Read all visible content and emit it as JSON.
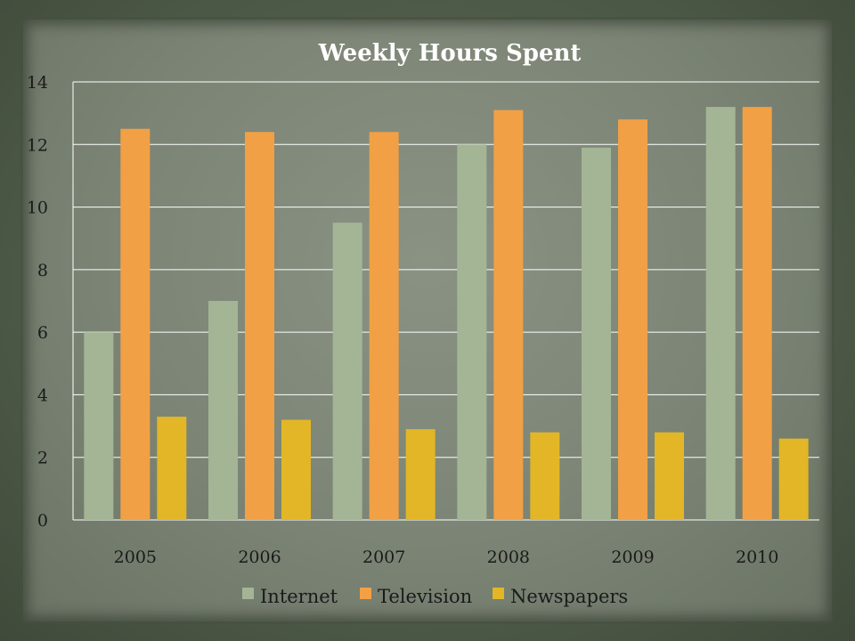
{
  "chart_data": {
    "type": "bar",
    "title": "Weekly Hours Spent",
    "xlabel": "",
    "ylabel": "",
    "categories": [
      "2005",
      "2006",
      "2007",
      "2008",
      "2009",
      "2010"
    ],
    "series": [
      {
        "name": "Internet",
        "color": "#a4b596",
        "values": [
          6,
          7,
          9.5,
          12,
          11.9,
          13.2
        ]
      },
      {
        "name": "Television",
        "color": "#f2a045",
        "values": [
          12.5,
          12.4,
          12.4,
          13.1,
          12.8,
          13.2
        ]
      },
      {
        "name": "Newspapers",
        "color": "#e2b627",
        "values": [
          3.3,
          3.2,
          2.9,
          2.8,
          2.8,
          2.6
        ]
      }
    ],
    "ylim": [
      0,
      14
    ],
    "yticks": [
      "0",
      "2",
      "4",
      "6",
      "8",
      "10",
      "12",
      "14"
    ],
    "grid": true,
    "legend": "bottom"
  }
}
